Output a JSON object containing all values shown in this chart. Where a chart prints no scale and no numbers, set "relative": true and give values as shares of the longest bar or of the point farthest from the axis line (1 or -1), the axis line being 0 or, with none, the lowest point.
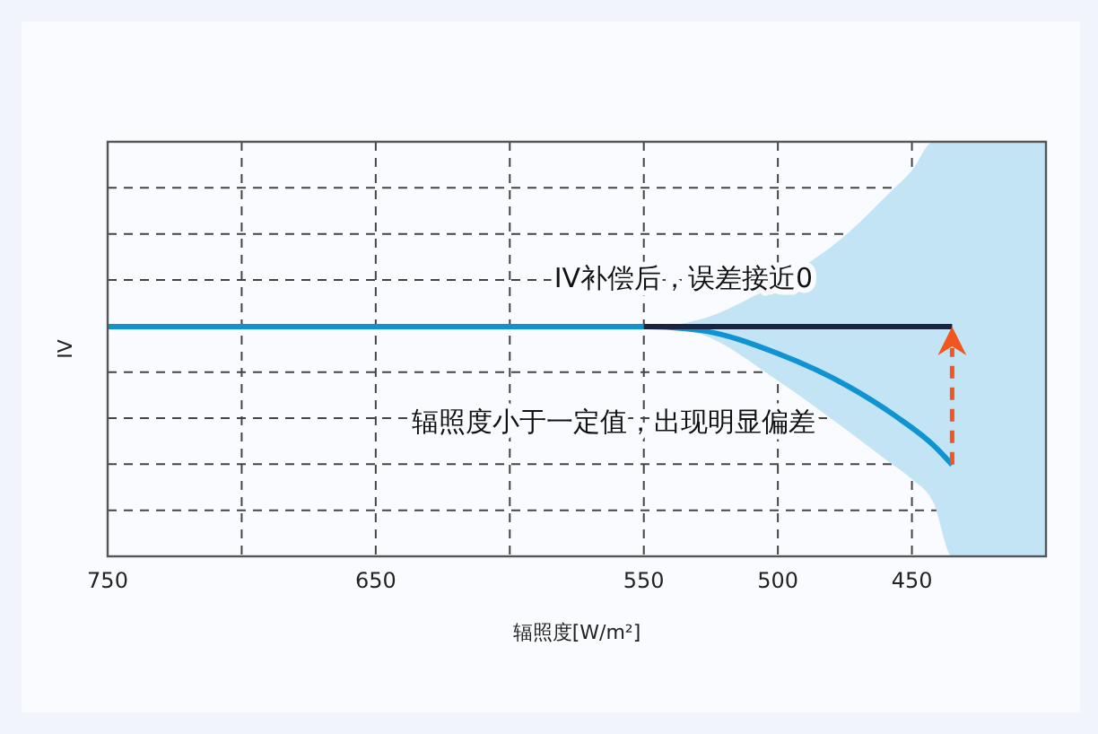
{
  "chart_data": {
    "type": "line",
    "relative": true,
    "xlabel": "辐照度[W/m²]",
    "ylabel": "IV",
    "xlim": [
      750,
      400
    ],
    "xticks": [
      750,
      {
        "value": 700,
        "label": null
      },
      650,
      {
        "value": 600,
        "label": null
      },
      550,
      500,
      450
    ],
    "grid": true,
    "marker": "none",
    "series": [
      {
        "type": "area",
        "color": "#c2e4f5",
        "x": [
          543,
          529,
          500,
          474,
          458,
          450,
          442,
          435,
          400
        ],
        "values": [
          null,
          null,
          null,
          null,
          null,
          null,
          null,
          null,
          null
        ],
        "lower": [
          1,
          0.969,
          0.765,
          0.547,
          0.406,
          0.336,
          0.235,
          0,
          0
        ],
        "upper": [
          1,
          1.031,
          1.195,
          1.406,
          1.587,
          1.68,
          1.805,
          1.805,
          1.805
        ]
      },
      {
        "color": "#0f93d2",
        "x": [
          750,
          549,
          529,
          500,
          474,
          456,
          442,
          435
        ],
        "values": [
          1,
          1,
          0.984,
          0.883,
          0.742,
          0.61,
          0.484,
          0.399
        ]
      },
      {
        "color": "#1a2342",
        "x": [
          550,
          435
        ],
        "values": [
          1,
          1
        ]
      }
    ],
    "annotations": [
      "IV补偿后，误差接近0",
      "辐照度小于一定值，出现明显偏差"
    ]
  }
}
